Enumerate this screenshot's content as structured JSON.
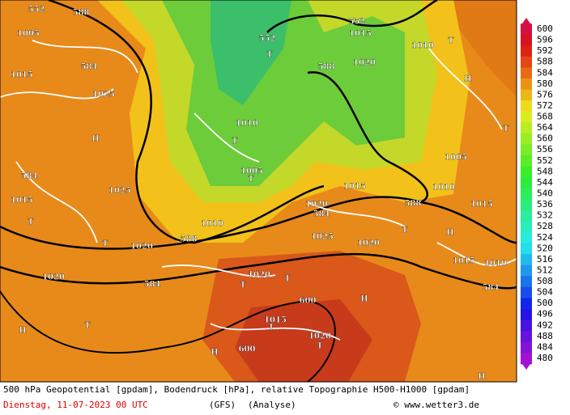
{
  "map_labels": [
    "552",
    "588",
    "1005",
    "584",
    "1015",
    "1025",
    "H",
    "584",
    "1025",
    "1015",
    "T",
    "T",
    "1020",
    "588",
    "1020",
    "584",
    "H",
    "T",
    "552",
    "T",
    "552",
    "1015",
    "588",
    "1020",
    "T",
    "1010",
    "T",
    "1005",
    "1010",
    "584",
    "1020",
    "T",
    "1015",
    "588",
    "1010",
    "1005",
    "H",
    "T",
    "1010",
    "600",
    "600",
    "T",
    "1015",
    "1020",
    "T",
    "H",
    "H",
    "H",
    "1015",
    "584",
    "T",
    "1015",
    "H",
    "1010",
    "1020",
    "T",
    "T",
    "1020",
    "1025"
  ],
  "legend": {
    "levels": [
      600,
      596,
      592,
      588,
      584,
      580,
      576,
      572,
      568,
      564,
      560,
      556,
      552,
      548,
      544,
      540,
      536,
      532,
      528,
      524,
      520,
      516,
      512,
      508,
      504,
      500,
      496,
      492,
      488,
      484,
      480
    ]
  },
  "footer": {
    "description": "500 hPa Geopotential [gpdam], Bodendruck [hPa], relative Topographie H500-H1000 [gpdam]",
    "date": "Dienstag, 11-07-2023  00 UTC",
    "model": "(GFS)",
    "run": "(Analyse)",
    "source": "© www.wetter3.de"
  }
}
